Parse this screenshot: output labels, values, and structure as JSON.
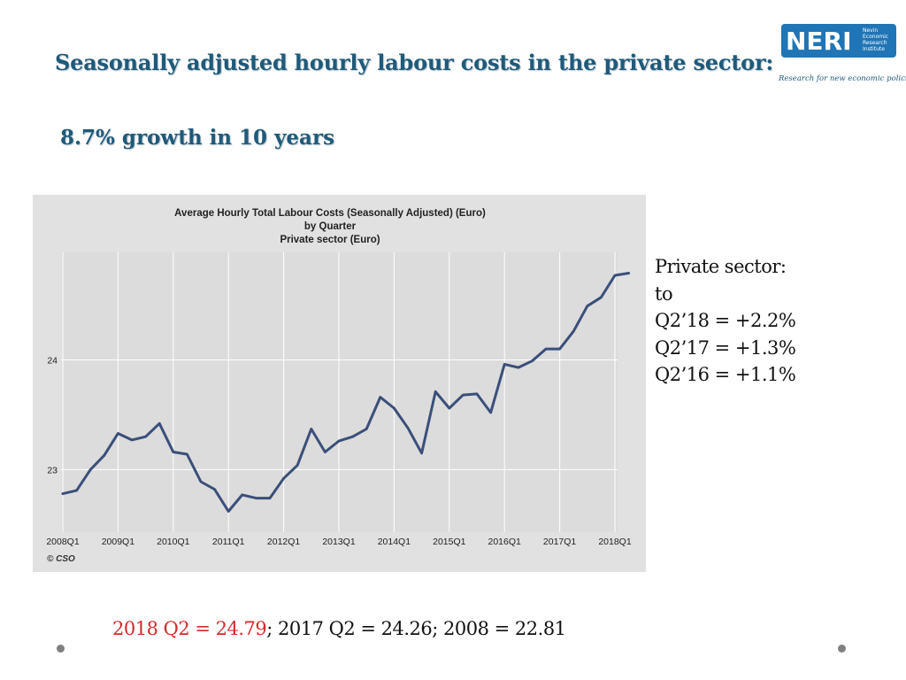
{
  "slide": {
    "title": "Seasonally adjusted hourly labour costs in the private sector:",
    "subtitle": "8.7% growth in 10 years"
  },
  "logo": {
    "name": "NERI",
    "words": [
      "Nevin",
      "Economic",
      "Research",
      "Institute"
    ],
    "tagline": "Research for new economic policies",
    "color": "#1f75b5"
  },
  "side_note": {
    "lines": [
      "Private sector:",
      "to",
      "Q2’18 = +2.2%",
      "Q2’17 = +1.3%",
      "Q2’16 = +1.1%"
    ]
  },
  "footer": {
    "highlight": "2018 Q2 = 24.79",
    "rest": "; 2017 Q2 = 24.26; 2008 = 22.81",
    "highlight_color": "#d42a2a"
  },
  "chart_data": {
    "type": "line",
    "title_lines": [
      "Average Hourly Total Labour Costs (Seasonally Adjusted) (Euro)",
      "by Quarter",
      "Private sector (Euro)"
    ],
    "x_ticks": [
      "2008Q1",
      "2009Q1",
      "2010Q1",
      "2011Q1",
      "2012Q1",
      "2013Q1",
      "2014Q1",
      "2015Q1",
      "2016Q1",
      "2017Q1",
      "2018Q1"
    ],
    "y_ticks": [
      23,
      24
    ],
    "ylim": [
      22.43,
      24.98
    ],
    "grid": true,
    "line_color": "#3a4f7a",
    "credit": "© CSO",
    "series": [
      {
        "x": [
          "2008Q1",
          "2008Q2",
          "2008Q3",
          "2008Q4",
          "2009Q1",
          "2009Q2",
          "2009Q3",
          "2009Q4",
          "2010Q1",
          "2010Q2",
          "2010Q3",
          "2010Q4",
          "2011Q1",
          "2011Q2",
          "2011Q3",
          "2011Q4",
          "2012Q1",
          "2012Q2",
          "2012Q3",
          "2012Q4",
          "2013Q1",
          "2013Q2",
          "2013Q3",
          "2013Q4",
          "2014Q1",
          "2014Q2",
          "2014Q3",
          "2014Q4",
          "2015Q1",
          "2015Q2",
          "2015Q3",
          "2015Q4",
          "2016Q1",
          "2016Q2",
          "2016Q3",
          "2016Q4",
          "2017Q1",
          "2017Q2",
          "2017Q3",
          "2017Q4",
          "2018Q1",
          "2018Q2"
        ],
        "values": [
          22.78,
          22.81,
          23.0,
          23.13,
          23.33,
          23.27,
          23.3,
          23.42,
          23.16,
          23.14,
          22.89,
          22.82,
          22.62,
          22.77,
          22.74,
          22.74,
          22.92,
          23.04,
          23.37,
          23.16,
          23.26,
          23.3,
          23.37,
          23.66,
          23.56,
          23.38,
          23.15,
          23.71,
          23.56,
          23.68,
          23.69,
          23.52,
          23.96,
          23.93,
          23.99,
          24.1,
          24.1,
          24.26,
          24.49,
          24.57,
          24.77,
          24.79
        ]
      }
    ]
  }
}
